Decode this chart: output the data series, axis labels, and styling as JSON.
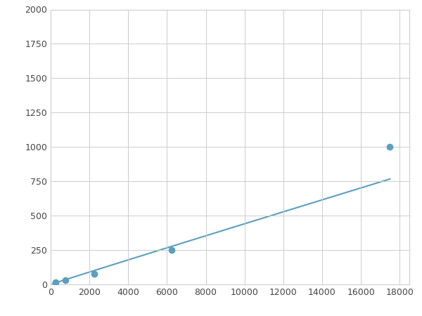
{
  "x": [
    250,
    750,
    2250,
    6250,
    17500
  ],
  "y": [
    15,
    30,
    75,
    250,
    1000
  ],
  "line_color": "#5a9fc0",
  "marker_color": "#5a9fc0",
  "marker_size": 6,
  "line_width": 1.5,
  "xlim": [
    0,
    18500
  ],
  "ylim": [
    0,
    2000
  ],
  "xticks": [
    0,
    2000,
    4000,
    6000,
    8000,
    10000,
    12000,
    14000,
    16000,
    18000
  ],
  "yticks": [
    0,
    250,
    500,
    750,
    1000,
    1250,
    1500,
    1750,
    2000
  ],
  "grid": true,
  "background_color": "#ffffff",
  "figwidth": 6.0,
  "figheight": 4.5,
  "dpi": 100
}
